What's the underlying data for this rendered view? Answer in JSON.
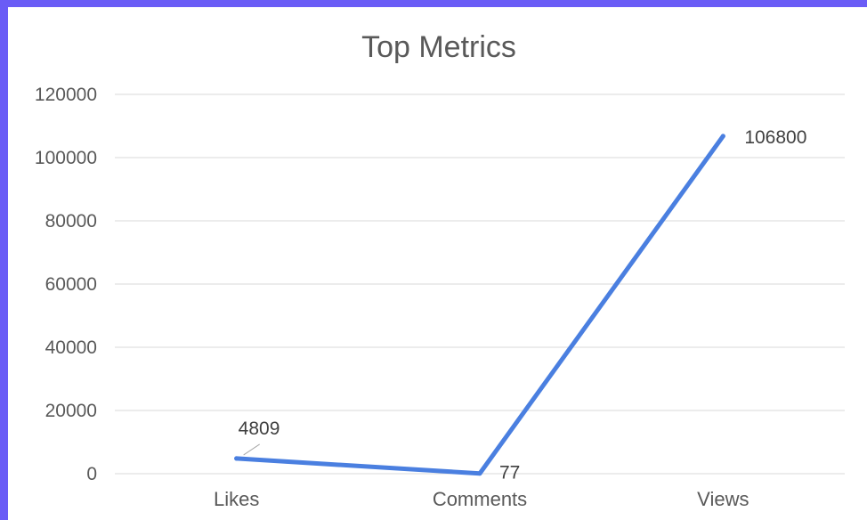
{
  "chart_data": {
    "type": "line",
    "title": "Top Metrics",
    "categories": [
      "Likes",
      "Comments",
      "Views"
    ],
    "series": [
      {
        "values": [
          4809,
          77,
          106800
        ],
        "color": "#4a7fe0"
      }
    ],
    "data_labels": [
      "4809",
      "77",
      "106800"
    ],
    "ylim": [
      0,
      120000
    ],
    "yticks": [
      0,
      20000,
      40000,
      60000,
      80000,
      100000,
      120000
    ],
    "ytick_labels": [
      "0",
      "20000",
      "40000",
      "60000",
      "80000",
      "100000",
      "120000"
    ],
    "grid": true,
    "legend": "none"
  }
}
